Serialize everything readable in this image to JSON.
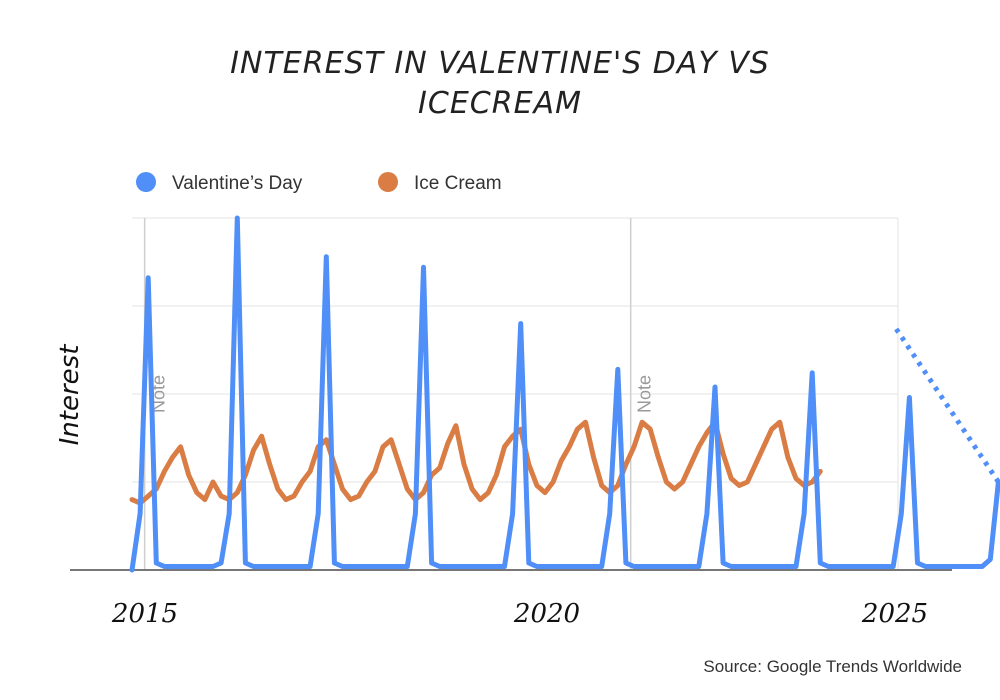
{
  "chart_data": {
    "type": "line",
    "title_line1": "INTEREST IN VALENTINE'S DAY VS",
    "title_line2": "ICECREAM",
    "ylabel": "Interest",
    "xlabel": "",
    "x_ticks": [
      "2015",
      "2020",
      "2025"
    ],
    "note_label": "Note",
    "notes_at": [
      2015.0,
      2020.0
    ],
    "source": "Source: Google Trends Worldwide",
    "grid": true,
    "legend_position": "top-left",
    "ylim": [
      0,
      100
    ],
    "xlim": [
      2014.87,
      2022.75
    ],
    "x_start": 2014.87,
    "x_step": 0.0833,
    "series": [
      {
        "name": "Valentine’s Day",
        "color": "#4f8ff7",
        "values": [
          0,
          16,
          83,
          2,
          1,
          1,
          1,
          1,
          1,
          1,
          1,
          2,
          16,
          100,
          2,
          1,
          1,
          1,
          1,
          1,
          1,
          1,
          1,
          16,
          89,
          2,
          1,
          1,
          1,
          1,
          1,
          1,
          1,
          1,
          1,
          16,
          86,
          2,
          1,
          1,
          1,
          1,
          1,
          1,
          1,
          1,
          1,
          16,
          70,
          2,
          1,
          1,
          1,
          1,
          1,
          1,
          1,
          1,
          1,
          16,
          57,
          2,
          1,
          1,
          1,
          1,
          1,
          1,
          1,
          1,
          1,
          16,
          52,
          2,
          1,
          1,
          1,
          1,
          1,
          1,
          1,
          1,
          1,
          16,
          56,
          2,
          1,
          1,
          1,
          1,
          1,
          1,
          1,
          1,
          1,
          16,
          49,
          2,
          1,
          1,
          1,
          1,
          1,
          1,
          1,
          1,
          3,
          25
        ],
        "forecast_end": 69
      },
      {
        "name": "Ice Cream",
        "color": "#d97d45",
        "values": [
          20,
          19,
          21,
          23,
          28,
          32,
          35,
          27,
          22,
          20,
          25,
          21,
          20,
          22,
          27,
          34,
          38,
          30,
          23,
          20,
          21,
          25,
          28,
          35,
          37,
          30,
          23,
          20,
          21,
          25,
          28,
          35,
          37,
          30,
          23,
          20,
          22,
          27,
          29,
          36,
          41,
          30,
          23,
          20,
          22,
          27,
          35,
          38,
          40,
          30,
          24,
          22,
          25,
          31,
          35,
          40,
          42,
          32,
          24,
          22,
          24,
          30,
          35,
          42,
          40,
          32,
          25,
          23,
          25,
          30,
          35,
          39,
          42,
          33,
          26,
          24,
          25,
          30,
          35,
          40,
          42,
          32,
          26,
          24,
          25,
          28
        ]
      }
    ]
  }
}
